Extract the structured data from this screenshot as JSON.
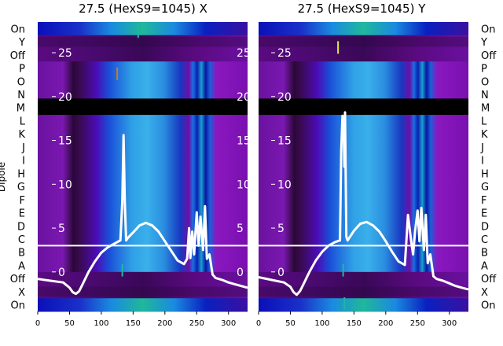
{
  "chart_data": [
    {
      "type": "heatmap",
      "title": "27.5 (HexS9=1045) X",
      "ylabel": "Dipole",
      "y_category_labels": [
        "On",
        "Y",
        "Off",
        "P",
        "O",
        "N",
        "M",
        "L",
        "K",
        "J",
        "I",
        "H",
        "G",
        "F",
        "E",
        "D",
        "C",
        "B",
        "A",
        "Off",
        "X",
        "On"
      ],
      "x_ticks": [
        0,
        50,
        100,
        150,
        200,
        250,
        300
      ],
      "xlim": [
        0,
        330
      ],
      "inner_y_ticks": [
        0,
        5,
        10,
        15,
        20,
        25
      ],
      "inner_ylim": [
        -4.5,
        28.5
      ],
      "colormap": [
        "#2e0a3c",
        "#6b0a9c",
        "#8a0fc0",
        "#1010c8",
        "#1a6fe0",
        "#2fa8e8",
        "#1fb89a",
        "#19c36a"
      ],
      "series": [
        {
          "type": "line",
          "color": "#ffffff",
          "x": [
            0,
            20,
            40,
            50,
            55,
            60,
            65,
            70,
            80,
            90,
            100,
            110,
            120,
            130,
            133,
            135,
            137,
            139,
            142,
            150,
            160,
            170,
            180,
            190,
            200,
            210,
            220,
            230,
            235,
            238,
            240,
            243,
            246,
            250,
            253,
            256,
            260,
            263,
            266,
            270,
            275,
            280,
            290,
            300,
            310,
            320,
            330
          ],
          "y": [
            -0.8,
            -1,
            -1.2,
            -1.8,
            -2.3,
            -2.5,
            -2.2,
            -1.5,
            0,
            1.2,
            2.2,
            2.8,
            3.2,
            3.6,
            8,
            15.6,
            8,
            3.6,
            3.9,
            4.5,
            5.3,
            5.6,
            5.3,
            4.6,
            3.5,
            2.4,
            1.3,
            0.9,
            1.5,
            5,
            1.6,
            4.6,
            2,
            6.8,
            3,
            6.3,
            2.5,
            7.5,
            1.5,
            2,
            -0.3,
            -0.7,
            -0.9,
            -1.2,
            -1.4,
            -1.6,
            -1.8
          ]
        }
      ],
      "bars": [
        {
          "x": 158,
          "y": 27.4,
          "color": "#1fb89a"
        },
        {
          "x": 125,
          "y": 22.6,
          "color": "#c87a2a"
        },
        {
          "x": 133,
          "y": 0.2,
          "color": "#1fb89a"
        }
      ]
    },
    {
      "type": "heatmap",
      "title": "27.5 (HexS9=1045) Y",
      "y_category_labels": [
        "On",
        "Y",
        "Off",
        "P",
        "O",
        "N",
        "M",
        "L",
        "K",
        "J",
        "I",
        "H",
        "G",
        "F",
        "E",
        "D",
        "C",
        "B",
        "A",
        "Off",
        "X",
        "On"
      ],
      "x_ticks": [
        0,
        50,
        100,
        150,
        200,
        250,
        300
      ],
      "xlim": [
        0,
        330
      ],
      "inner_y_ticks": [
        0,
        5,
        10,
        15,
        20,
        25
      ],
      "inner_ylim": [
        -4.5,
        28.5
      ],
      "series": [
        {
          "type": "line",
          "color": "#ffffff",
          "x": [
            0,
            20,
            40,
            50,
            55,
            60,
            65,
            70,
            80,
            90,
            100,
            110,
            120,
            128,
            130,
            132,
            134,
            135,
            136,
            138,
            140,
            150,
            160,
            170,
            180,
            190,
            200,
            210,
            220,
            230,
            232,
            235,
            240,
            243,
            246,
            250,
            253,
            256,
            260,
            263,
            266,
            270,
            275,
            280,
            290,
            300,
            310,
            320,
            330
          ],
          "y": [
            -0.6,
            -0.9,
            -1.2,
            -1.7,
            -2.3,
            -2.6,
            -2.2,
            -1.5,
            0,
            1.3,
            2.3,
            3,
            3.4,
            3.6,
            14,
            17.8,
            16,
            12,
            18.2,
            4,
            3.6,
            4.7,
            5.5,
            5.7,
            5.3,
            4.6,
            3.5,
            2.3,
            1.2,
            0.8,
            3,
            6.5,
            3.5,
            2,
            4.5,
            7,
            3.5,
            7.3,
            2.5,
            6.5,
            1,
            2,
            -0.5,
            -0.8,
            -1,
            -1.3,
            -1.6,
            -1.8,
            -2
          ]
        }
      ],
      "bars": [
        {
          "x": 125,
          "y": 25.6,
          "color": "#e0e84a"
        },
        {
          "x": 133,
          "y": 0.2,
          "color": "#1fb89a"
        },
        {
          "x": 135,
          "y": -3.6,
          "color": "#1fb89a"
        }
      ]
    }
  ]
}
